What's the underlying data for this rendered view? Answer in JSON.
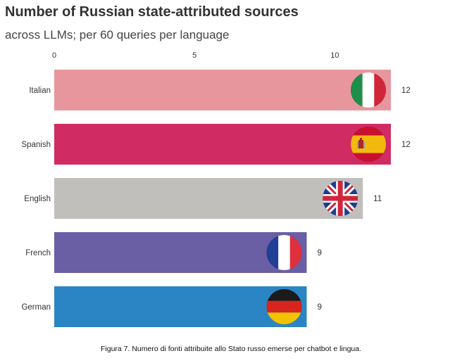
{
  "chart_data": {
    "type": "bar",
    "orientation": "horizontal",
    "title": "Number of Russian state-attributed sources",
    "subtitle": "across LLMs; per 60 queries per language",
    "categories": [
      "Italian",
      "Spanish",
      "English",
      "French",
      "German"
    ],
    "values": [
      12,
      12,
      11,
      9,
      9
    ],
    "colors": [
      "#E8969E",
      "#D12B63",
      "#C0BFBC",
      "#6A5FA5",
      "#2B85C4"
    ],
    "flag_icons": [
      "italy-flag-icon",
      "spain-flag-icon",
      "uk-flag-icon",
      "france-flag-icon",
      "germany-flag-icon"
    ],
    "xticks": [
      0,
      5,
      10
    ],
    "xlim": [
      0,
      12
    ],
    "xlabel": "",
    "ylabel": ""
  },
  "caption": "Figura 7. Numero di fonti attribuite allo Stato russo emerse per chatbot e lingua."
}
